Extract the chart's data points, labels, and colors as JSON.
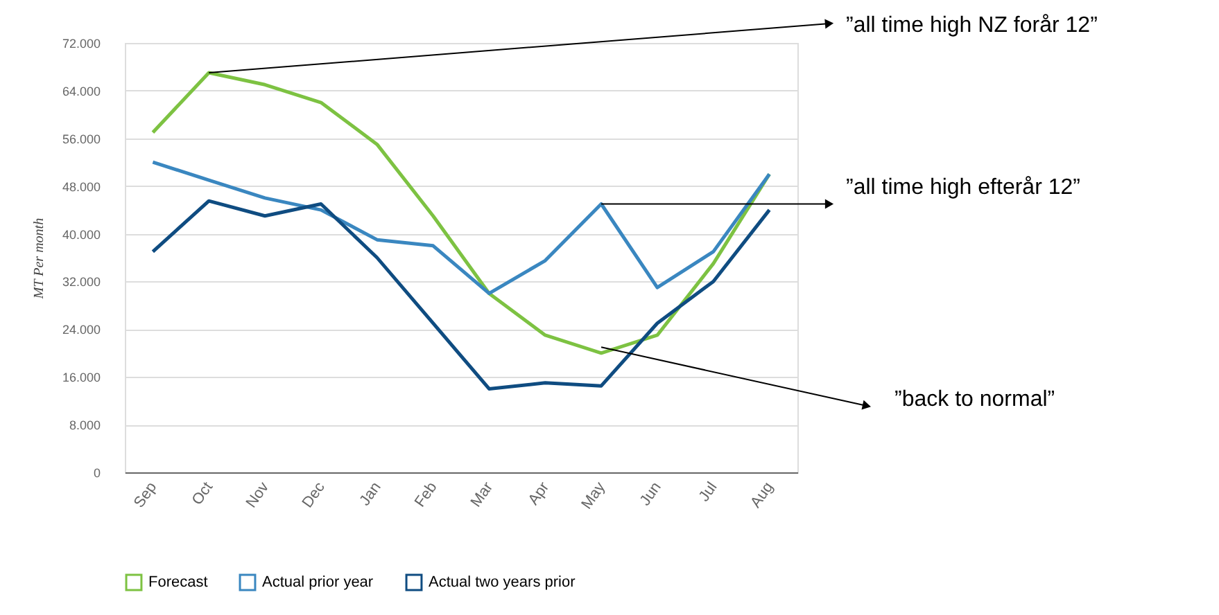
{
  "chart_data": {
    "type": "line",
    "ylabel": "MT Per month",
    "categories": [
      "Sep",
      "Oct",
      "Nov",
      "Dec",
      "Jan",
      "Feb",
      "Mar",
      "Apr",
      "May",
      "Jun",
      "Jul",
      "Aug"
    ],
    "series": [
      {
        "name": "Forecast",
        "color": "#7dc242",
        "values": [
          57000,
          67000,
          65000,
          62000,
          55000,
          43000,
          30000,
          23000,
          20000,
          23000,
          35000,
          50000
        ]
      },
      {
        "name": "Actual prior year",
        "color": "#3a87c0",
        "values": [
          52000,
          49000,
          46000,
          44000,
          39000,
          38000,
          30000,
          35500,
          45000,
          31000,
          37000,
          50000
        ]
      },
      {
        "name": "Actual two years prior",
        "color": "#0f4c81",
        "values": [
          37000,
          45500,
          43000,
          45000,
          36000,
          25000,
          14000,
          15000,
          14500,
          25000,
          32000,
          44000
        ]
      }
    ],
    "ylim": [
      0,
      72000
    ],
    "yticks": [
      0,
      {
        "value": 8000,
        "label": "8.000"
      },
      {
        "value": 16000,
        "label": "16.000"
      },
      {
        "value": 24000,
        "label": "24.000"
      },
      {
        "value": 32000,
        "label": "32.000"
      },
      {
        "value": 40000,
        "label": "40.000"
      },
      {
        "value": 48000,
        "label": "48.000"
      },
      {
        "value": 56000,
        "label": "56.000"
      },
      {
        "value": 64000,
        "label": "64.000"
      },
      {
        "value": 72000,
        "label": "72.000"
      }
    ],
    "annotations": [
      {
        "text": "”all time high NZ forår 12”",
        "x": "Oct",
        "y": 67000
      },
      {
        "text": "”all time high efterår 12”",
        "x": "May",
        "y": 45000
      },
      {
        "text": "”back to normal”",
        "x": "May",
        "y": 21000
      }
    ],
    "grid": "y",
    "legend": "bottom",
    "marker": "none",
    "line_style": "solid"
  }
}
